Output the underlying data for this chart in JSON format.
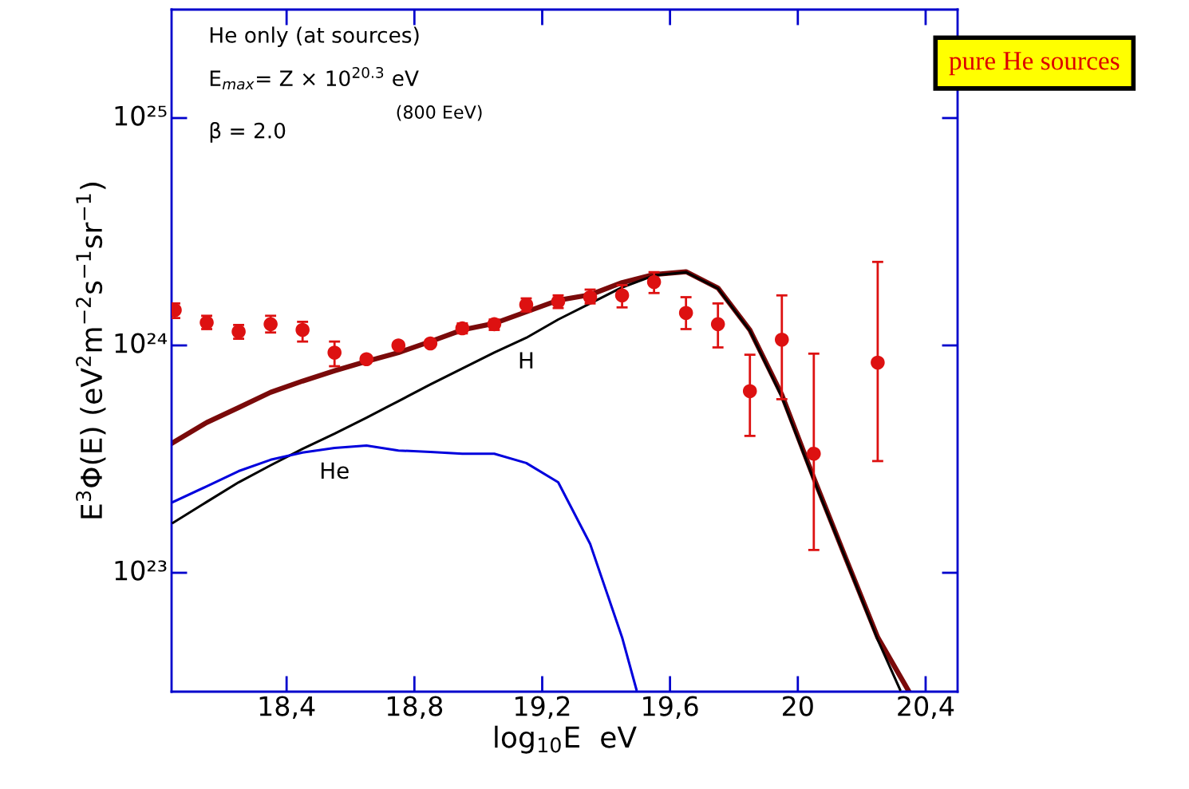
{
  "chart_data": {
    "type": "line",
    "xlabel": "log$_{10}$E  eV",
    "ylabel": "E$^{3}$Φ(E) (eV$^{2}$m$^{−2}$s$^{−1}$sr$^{−1}$)",
    "log": "y",
    "xlim": [
      18.04,
      20.5
    ],
    "ylim": [
      3e+22,
      3e+25
    ],
    "xticks": [
      {
        "value": 18.4,
        "label": "18,4"
      },
      {
        "value": 18.8,
        "label": "18,8"
      },
      {
        "value": 19.2,
        "label": "19,2"
      },
      {
        "value": 19.6,
        "label": "19,6"
      },
      20,
      {
        "value": 20.4,
        "label": "20,4"
      }
    ],
    "yticks": [
      {
        "value": 1e+23,
        "label": "10²³"
      },
      {
        "value": 1e+24,
        "label": "10²⁴"
      },
      {
        "value": 1e+25,
        "label": "10²⁵"
      }
    ],
    "grid": false,
    "legend": false,
    "annotations": [
      "He only (at sources)",
      "E$_{max}$= Z × 10$^{20.3}$ eV",
      "(800 EeV)",
      "β = 2.0",
      "pure He sources"
    ],
    "series": [
      {
        "color": "#7a0a0a",
        "x": [
          18.045,
          18.15,
          18.25,
          18.35,
          18.45,
          18.55,
          18.65,
          18.75,
          18.85,
          18.95,
          19.05,
          19.25,
          19.35,
          19.45,
          19.55,
          19.65,
          19.75,
          19.85,
          19.95,
          20.05,
          20.15,
          20.25,
          20.345
        ],
        "values": [
          3.74e+23,
          4.58e+23,
          5.33e+23,
          6.22e+23,
          6.97e+23,
          7.73e+23,
          8.51e+23,
          9.3e+23,
          1.04e+24,
          1.17e+24,
          1.25e+24,
          1.58e+24,
          1.67e+24,
          1.89e+24,
          2.05e+24,
          2.11e+24,
          1.79e+24,
          1.17e+24,
          6.07e+23,
          2.61e+23,
          1.16e+23,
          5.2e+22,
          3.05e+22
        ]
      },
      {
        "name": "H",
        "color": "#000000",
        "x": [
          18.045,
          18.15,
          18.25,
          18.35,
          18.45,
          18.55,
          18.65,
          18.75,
          18.85,
          18.95,
          19.05,
          19.15,
          19.25,
          19.35,
          19.45,
          19.55,
          19.65,
          19.75,
          19.85,
          19.95,
          20.05,
          20.15,
          20.25,
          20.32
        ],
        "values": [
          1.66e+23,
          2.05e+23,
          2.5e+23,
          2.97e+23,
          3.51e+23,
          4.09e+23,
          4.81e+23,
          5.69e+23,
          6.74e+23,
          7.92e+23,
          9.3e+23,
          1.08e+24,
          1.3e+24,
          1.53e+24,
          1.8e+24,
          2.03e+24,
          2.1e+24,
          1.78e+24,
          1.16e+24,
          5.93e+23,
          2.56e+23,
          1.15e+23,
          5.08e+22,
          3.06e+22
        ]
      },
      {
        "name": "He",
        "color": "#0000dd",
        "x": [
          18.045,
          18.15,
          18.25,
          18.35,
          18.45,
          18.55,
          18.65,
          18.75,
          18.85,
          18.95,
          19.05,
          19.15,
          19.25,
          19.35,
          19.45,
          19.495
        ],
        "values": [
          2.05e+23,
          2.4e+23,
          2.8e+23,
          3.14e+23,
          3.38e+23,
          3.54e+23,
          3.63e+23,
          3.45e+23,
          3.4e+23,
          3.34e+23,
          3.34e+23,
          3.04e+23,
          2.5e+23,
          1.34e+23,
          5.2e+22,
          3.06e+22
        ]
      },
      {
        "type": "scatter",
        "color": "#dd1111",
        "x": [
          18.05,
          18.15,
          18.25,
          18.35,
          18.45,
          18.55,
          18.65,
          18.75,
          18.85,
          18.95,
          19.05,
          19.15,
          19.25,
          19.35,
          19.45,
          19.55,
          19.65,
          19.75,
          19.85,
          19.95,
          20.05,
          20.25
        ],
        "values": [
          1.43e+24,
          1.26e+24,
          1.15e+24,
          1.24e+24,
          1.17e+24,
          9.3e+23,
          8.7e+23,
          1e+24,
          1.02e+24,
          1.19e+24,
          1.24e+24,
          1.51e+24,
          1.56e+24,
          1.63e+24,
          1.66e+24,
          1.9e+24,
          1.39e+24,
          1.24e+24,
          6.3e+23,
          1.06e+24,
          3.34e+23,
          8.4e+23
        ],
        "errors": [
          [
            1.32e+24,
            1.53e+24
          ],
          [
            1.18e+24,
            1.35e+24
          ],
          [
            1.07e+24,
            1.23e+24
          ],
          [
            1.14e+24,
            1.35e+24
          ],
          [
            1.04e+24,
            1.27e+24
          ],
          [
            8.1e+23,
            1.04e+24
          ],
          null,
          null,
          null,
          [
            1.13e+24,
            1.25e+24
          ],
          [
            1.17e+24,
            1.3e+24
          ],
          [
            1.41e+24,
            1.61e+24
          ],
          [
            1.46e+24,
            1.66e+24
          ],
          [
            1.53e+24,
            1.76e+24
          ],
          [
            1.47e+24,
            1.84e+24
          ],
          [
            1.7e+24,
            2.1e+24
          ],
          [
            1.18e+24,
            1.63e+24
          ],
          [
            9.8e+23,
            1.53e+24
          ],
          [
            4e+23,
            9.1e+23
          ],
          [
            5.8e+23,
            1.66e+24
          ],
          [
            1.26e+23,
            9.2e+23
          ],
          [
            3.1e+23,
            2.33e+24
          ]
        ]
      }
    ]
  }
}
